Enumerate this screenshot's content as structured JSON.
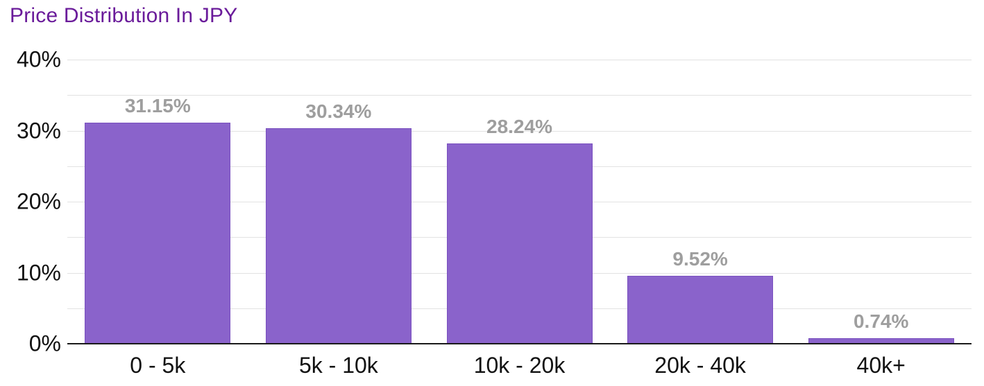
{
  "title": "Price Distribution In JPY",
  "colors": {
    "background": "#FFFFFF",
    "title": "#6A1B9A",
    "bar_fill": "#8A63CB",
    "bar_border": "#7A50BF",
    "value_label": "#9E9E9E",
    "axis_label": "#111111",
    "gridline": "#E2E2E2",
    "baseline": "#1A1A1A"
  },
  "chart_data": {
    "type": "bar",
    "title": "Price Distribution In JPY",
    "categories": [
      "0 - 5k",
      "5k - 10k",
      "10k - 20k",
      "20k - 40k",
      "40k+"
    ],
    "values": [
      31.15,
      30.34,
      28.24,
      9.52,
      0.74
    ],
    "value_labels": [
      "31.15%",
      "30.34%",
      "28.24%",
      "9.52%",
      "0.74%"
    ],
    "xlabel": "",
    "ylabel": "",
    "ylim": [
      0,
      40
    ],
    "y_tick_labels": [
      "0%",
      "10%",
      "20%",
      "30%",
      "40%"
    ],
    "y_major_step": 10,
    "y_minor_step": 5,
    "grid": true,
    "legend": "none"
  }
}
